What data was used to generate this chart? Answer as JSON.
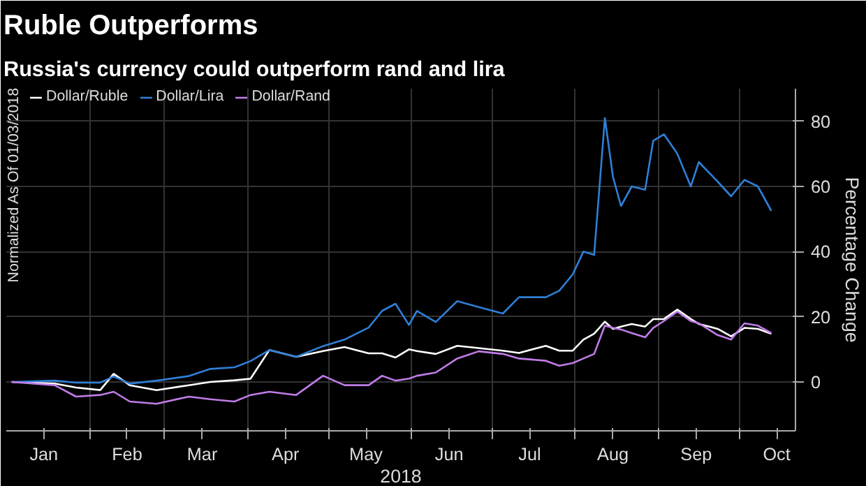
{
  "chart_data": {
    "type": "line",
    "title": "Ruble Outperforms",
    "subtitle": "Russia's currency could outperform rand and lira",
    "legend_title": "Normalized As Of 01/03/2018",
    "xlabel": "2018",
    "ylabel": "Percentage Change",
    "x": [
      "2018-01-03",
      "2018-01-19",
      "2018-01-27",
      "2018-02-05",
      "2018-02-10",
      "2018-02-16",
      "2018-02-26",
      "2018-03-10",
      "2018-03-18",
      "2018-03-27",
      "2018-04-02",
      "2018-04-09",
      "2018-04-19",
      "2018-04-29",
      "2018-05-07",
      "2018-05-16",
      "2018-05-21",
      "2018-05-26",
      "2018-05-31",
      "2018-06-03",
      "2018-06-10",
      "2018-06-18",
      "2018-06-26",
      "2018-07-05",
      "2018-07-11",
      "2018-07-21",
      "2018-07-26",
      "2018-07-31",
      "2018-08-04",
      "2018-08-08",
      "2018-08-12",
      "2018-08-15",
      "2018-08-18",
      "2018-08-22",
      "2018-08-27",
      "2018-08-30",
      "2018-09-03",
      "2018-09-08",
      "2018-09-13",
      "2018-09-16",
      "2018-09-23",
      "2018-09-28",
      "2018-10-03",
      "2018-10-08",
      "2018-10-13"
    ],
    "series": [
      {
        "name": "Dollar/Ruble",
        "color": "#ffffff",
        "values": [
          0,
          -0.5,
          -1.7,
          -2.5,
          2.5,
          -1,
          -2.5,
          -1,
          0,
          0.5,
          1,
          9.8,
          7.7,
          9.5,
          10.7,
          8.8,
          8.8,
          7.5,
          10,
          9.5,
          8.6,
          11.1,
          10.4,
          9.6,
          8.9,
          11.1,
          9.6,
          9.6,
          13,
          14.8,
          18.5,
          16.3,
          17,
          17.8,
          17,
          19.3,
          19.3,
          22.2,
          19.3,
          17.8,
          16.3,
          14,
          16.6,
          16.3,
          14.8
        ]
      },
      {
        "name": "Dollar/Lira",
        "color": "#2f7fd6",
        "values": [
          0,
          0.4,
          -0.2,
          -0.2,
          1.7,
          -0.5,
          0.4,
          1.8,
          4,
          4.5,
          6.4,
          9.8,
          7.7,
          11,
          13,
          16.7,
          21.8,
          24,
          17.5,
          21.8,
          18.4,
          24.8,
          23,
          21,
          26,
          26,
          28,
          33,
          40,
          39,
          81,
          63,
          54,
          60,
          59,
          74,
          76,
          70,
          60,
          67.5,
          61.5,
          57,
          62,
          60,
          52.5
        ]
      },
      {
        "name": "Dollar/Rand",
        "color": "#c07ce8",
        "values": [
          0,
          -1,
          -4.5,
          -4,
          -3,
          -6,
          -6.7,
          -4.5,
          -5.3,
          -6,
          -4,
          -3,
          -4,
          1.9,
          -1,
          -1,
          1.9,
          0.4,
          1,
          1.9,
          2.9,
          7.2,
          9.4,
          8.6,
          7.2,
          6.5,
          5,
          5.8,
          7.2,
          8.6,
          17.3,
          16.6,
          16.1,
          15,
          13.7,
          16.6,
          18.7,
          21.6,
          18.7,
          18,
          14.4,
          13,
          18,
          17.3,
          15
        ]
      }
    ],
    "xlim": [
      "2018-01-01",
      "2018-10-22"
    ],
    "xticks": [
      {
        "value": "2018-01-15",
        "label": "Jan"
      },
      {
        "value": "2018-02-01",
        "label": null
      },
      {
        "value": "2018-02-15",
        "label": "Feb"
      },
      {
        "value": "2018-03-01",
        "label": null
      },
      {
        "value": "2018-03-15",
        "label": "Mar"
      },
      {
        "value": "2018-04-01",
        "label": null
      },
      {
        "value": "2018-04-15",
        "label": "Apr"
      },
      {
        "value": "2018-05-01",
        "label": null
      },
      {
        "value": "2018-05-15",
        "label": "May"
      },
      {
        "value": "2018-06-01",
        "label": null
      },
      {
        "value": "2018-06-15",
        "label": "Jun"
      },
      {
        "value": "2018-07-01",
        "label": null
      },
      {
        "value": "2018-07-15",
        "label": "Jul"
      },
      {
        "value": "2018-08-01",
        "label": null
      },
      {
        "value": "2018-08-15",
        "label": "Aug"
      },
      {
        "value": "2018-09-01",
        "label": null
      },
      {
        "value": "2018-09-15",
        "label": "Sep"
      },
      {
        "value": "2018-10-01",
        "label": null
      },
      {
        "value": "2018-10-15",
        "label": "Oct"
      }
    ],
    "ylim": [
      -15,
      90
    ],
    "yticks": [
      0,
      20,
      40,
      60,
      80
    ],
    "grid": true,
    "legend": "top left",
    "marker": "none",
    "line_style": "solid"
  }
}
